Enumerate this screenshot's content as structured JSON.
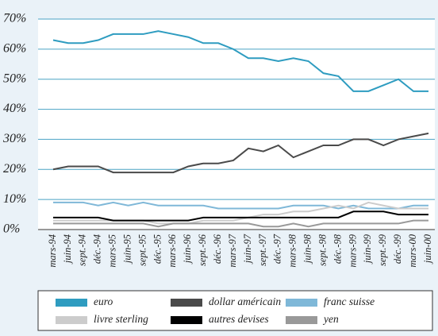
{
  "chart_data": {
    "type": "line",
    "categories": [
      "mars-94",
      "juin-94",
      "sept.-94",
      "déc.-94",
      "mars-95",
      "juin-95",
      "sept.-95",
      "déc.-95",
      "mars-96",
      "juin-96",
      "sept.-96",
      "déc.-96",
      "mars-97",
      "juin-97",
      "sept.-97",
      "déc.-97",
      "mars-98",
      "juin-98",
      "sept.-98",
      "déc.-98",
      "mars-99",
      "juin-99",
      "sept.-99",
      "déc.-99",
      "mars-00",
      "juin-00"
    ],
    "series": [
      {
        "name": "euro",
        "color": "#2e9cc0",
        "values": [
          63,
          62,
          62,
          63,
          65,
          65,
          65,
          66,
          65,
          64,
          62,
          62,
          60,
          57,
          57,
          56,
          57,
          56,
          52,
          51,
          46,
          46,
          48,
          50,
          46,
          46
        ]
      },
      {
        "name": "dollar américain",
        "color": "#4a4a4a",
        "values": [
          20,
          21,
          21,
          21,
          19,
          19,
          19,
          19,
          19,
          21,
          22,
          22,
          23,
          27,
          26,
          28,
          24,
          26,
          28,
          28,
          30,
          30,
          28,
          30,
          31,
          32
        ]
      },
      {
        "name": "franc suisse",
        "color": "#7fb8d8",
        "values": [
          9,
          9,
          9,
          8,
          9,
          8,
          9,
          8,
          8,
          8,
          8,
          7,
          7,
          7,
          7,
          7,
          8,
          8,
          8,
          7,
          8,
          7,
          7,
          7,
          8,
          8
        ]
      },
      {
        "name": "livre sterling",
        "color": "#cccccc",
        "values": [
          3,
          3,
          3,
          3,
          3,
          3,
          3,
          2,
          2,
          2,
          3,
          3,
          3,
          4,
          5,
          5,
          6,
          6,
          7,
          8,
          7,
          9,
          8,
          7,
          7,
          7
        ]
      },
      {
        "name": "autres devises",
        "color": "#000000",
        "values": [
          4,
          4,
          4,
          4,
          3,
          3,
          3,
          3,
          3,
          3,
          4,
          4,
          4,
          4,
          4,
          4,
          4,
          4,
          4,
          4,
          6,
          6,
          6,
          5,
          5,
          5
        ]
      },
      {
        "name": "yen",
        "color": "#999999",
        "values": [
          2,
          2,
          2,
          2,
          2,
          2,
          2,
          1,
          2,
          2,
          2,
          2,
          2,
          2,
          1,
          1,
          2,
          1,
          2,
          2,
          2,
          2,
          2,
          2,
          3,
          3
        ]
      }
    ],
    "ylim": [
      0,
      70
    ],
    "yticks": [
      {
        "value": 0,
        "label": "0%"
      },
      {
        "value": 10,
        "label": "10%"
      },
      {
        "value": 20,
        "label": "20%"
      },
      {
        "value": 30,
        "label": "30%"
      },
      {
        "value": 40,
        "label": "40%"
      },
      {
        "value": 50,
        "label": "50%"
      },
      {
        "value": 60,
        "label": "60%"
      },
      {
        "value": 70,
        "label": "70%"
      }
    ],
    "grid": true
  }
}
